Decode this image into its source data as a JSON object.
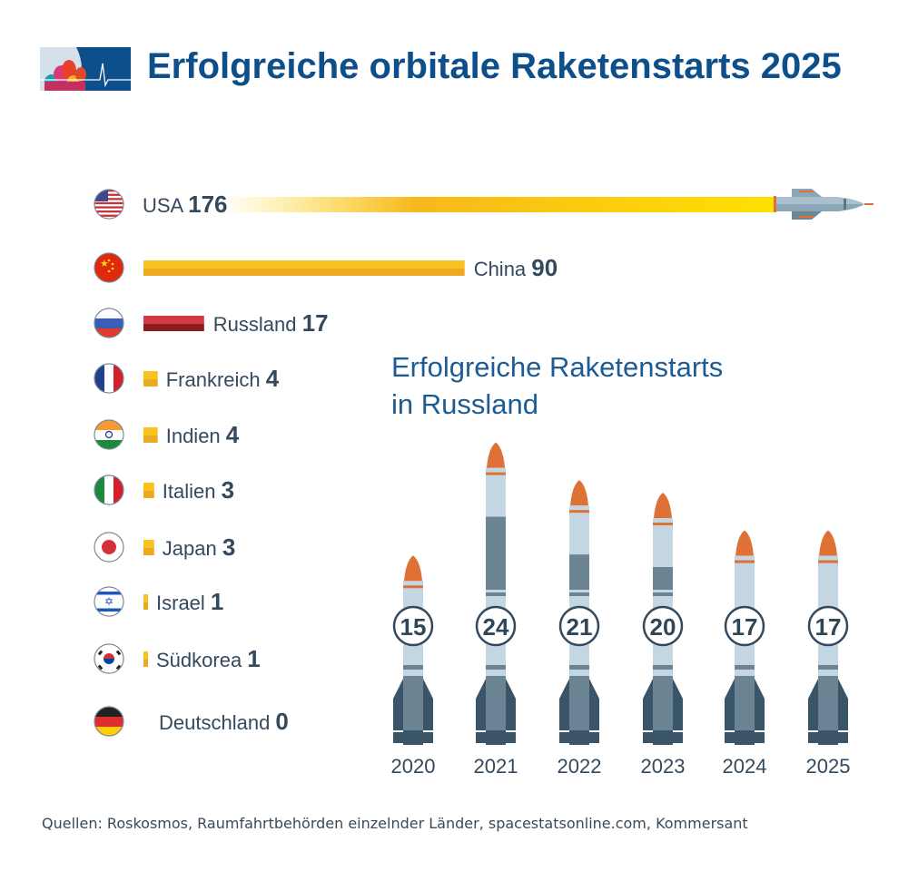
{
  "title": "Erfolgreiche orbitale Raketenstarts 2025",
  "sources": "Quellen: Roskosmos, Raumfahrtbehörden einzelnder Länder, spacestatsonline.com, Kommersant",
  "colors": {
    "title": "#0d4f8b",
    "bar": "#f7b81c",
    "russia_bar": "#c9303a",
    "text": "#34495e",
    "rocket_light": "#c3d6e2",
    "rocket_mid": "#6b8494",
    "rocket_dark": "#3a5568",
    "rocket_nose": "#de7236"
  },
  "chart_data": [
    {
      "type": "bar",
      "orientation": "horizontal",
      "title": "Erfolgreiche orbitale Raketenstarts 2025",
      "categories": [
        "USA",
        "China",
        "Russland",
        "Frankreich",
        "Indien",
        "Italien",
        "Japan",
        "Israel",
        "Südkorea",
        "Deutschland"
      ],
      "values": [
        176,
        90,
        17,
        4,
        4,
        3,
        3,
        1,
        1,
        0
      ],
      "flags": [
        "us-flag-icon",
        "cn-flag-icon",
        "ru-flag-icon",
        "fr-flag-icon",
        "in-flag-icon",
        "it-flag-icon",
        "jp-flag-icon",
        "il-flag-icon",
        "kr-flag-icon",
        "de-flag-icon"
      ]
    },
    {
      "type": "bar",
      "title": "Erfolgreiche Raketenstarts in Russland",
      "title_lines": [
        "Erfolgreiche Raketenstarts",
        "in Russland"
      ],
      "categories": [
        "2020",
        "2021",
        "2022",
        "2023",
        "2024",
        "2025"
      ],
      "values": [
        15,
        24,
        21,
        20,
        17,
        17
      ],
      "mark": "rocket-icon"
    }
  ]
}
